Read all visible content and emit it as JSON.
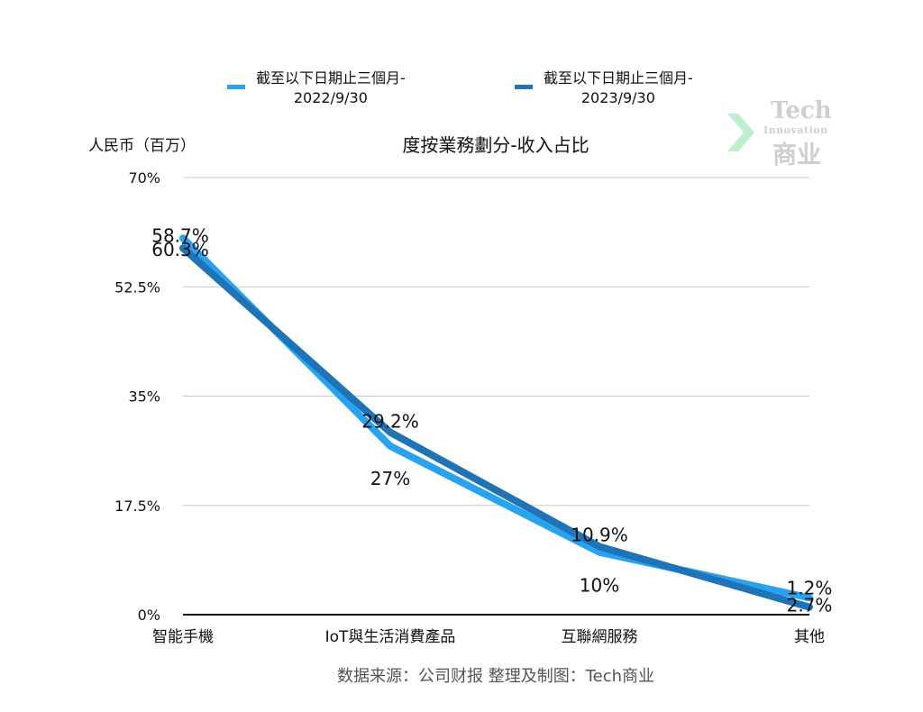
{
  "unit_label": "人民币（百万）",
  "source": "数据来源：公司财报 整理及制图：Tech商业",
  "watermark": {
    "line1": "Tech",
    "line2": "Innovation",
    "line3": "商业"
  },
  "chart_data": {
    "type": "line",
    "title": "度按業務劃分-收入占比",
    "categories": [
      "智能手機",
      "IoT與生活消費產品",
      "互聯網服務",
      "其他"
    ],
    "yticks": [
      "0%",
      "17.5%",
      "35%",
      "52.5%",
      "70%"
    ],
    "ylim": [
      0,
      70
    ],
    "grid": true,
    "legend": "top",
    "series": [
      {
        "name": "截至以下日期止三個月-\n2022/9/30",
        "values": [
          60.3,
          27,
          10,
          2.7
        ],
        "labels": [
          "60.3%",
          "27%",
          "10%",
          "2.7%"
        ],
        "color": "#29a3f0"
      },
      {
        "name": "截至以下日期止三個月-\n2023/9/30",
        "values": [
          58.7,
          29.2,
          10.9,
          1.2
        ],
        "labels": [
          "58.7%",
          "29.2%",
          "10.9%",
          "1.2%"
        ],
        "color": "#1f74b8"
      }
    ]
  }
}
